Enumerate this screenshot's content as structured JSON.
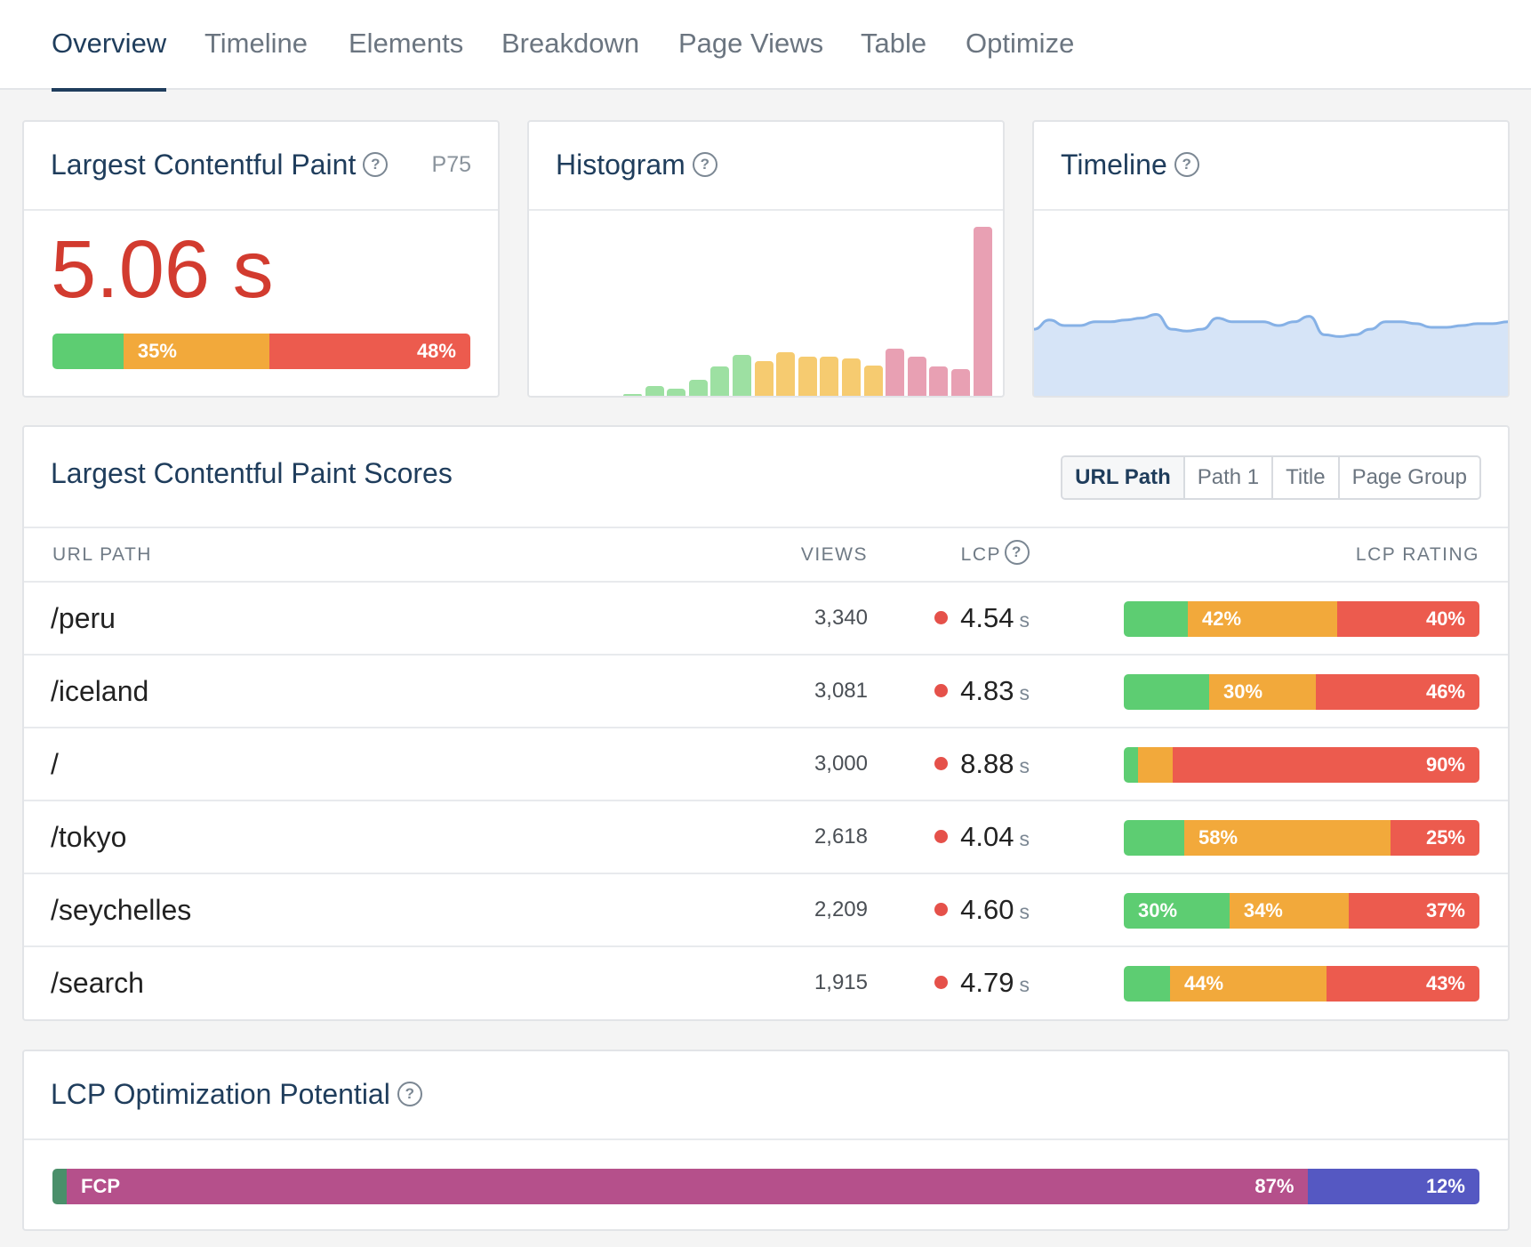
{
  "tabs": [
    {
      "label": "Overview",
      "active": true
    },
    {
      "label": "Timeline",
      "active": false
    },
    {
      "label": "Elements",
      "active": false
    },
    {
      "label": "Breakdown",
      "active": false
    },
    {
      "label": "Page Views",
      "active": false
    },
    {
      "label": "Table",
      "active": false
    },
    {
      "label": "Optimize",
      "active": false
    }
  ],
  "lcp_card": {
    "title": "Largest Contentful Paint",
    "help": "?",
    "percentile": "P75",
    "value": "5.06 s",
    "rating": {
      "good": 17,
      "ni": 35,
      "poor": 48,
      "ni_label": "35%",
      "poor_label": "48%"
    }
  },
  "histogram_card": {
    "title": "Histogram",
    "help": "?",
    "bars": [
      {
        "value": 2,
        "rating": "good"
      },
      {
        "value": 9,
        "rating": "good"
      },
      {
        "value": 7,
        "rating": "good"
      },
      {
        "value": 15,
        "rating": "good"
      },
      {
        "value": 28,
        "rating": "good"
      },
      {
        "value": 39,
        "rating": "good"
      },
      {
        "value": 33,
        "rating": "ni"
      },
      {
        "value": 41,
        "rating": "ni"
      },
      {
        "value": 37,
        "rating": "ni"
      },
      {
        "value": 37,
        "rating": "ni"
      },
      {
        "value": 35,
        "rating": "ni"
      },
      {
        "value": 29,
        "rating": "ni"
      },
      {
        "value": 45,
        "rating": "poor"
      },
      {
        "value": 37,
        "rating": "poor"
      },
      {
        "value": 28,
        "rating": "poor"
      },
      {
        "value": 25,
        "rating": "poor"
      },
      {
        "value": 160,
        "rating": "poor"
      }
    ]
  },
  "timeline_card": {
    "title": "Timeline",
    "help": "?",
    "series": [
      0.36,
      0.41,
      0.38,
      0.38,
      0.4,
      0.4,
      0.41,
      0.42,
      0.44,
      0.36,
      0.35,
      0.36,
      0.42,
      0.4,
      0.4,
      0.4,
      0.38,
      0.4,
      0.43,
      0.33,
      0.32,
      0.33,
      0.36,
      0.4,
      0.4,
      0.39,
      0.37,
      0.37,
      0.38,
      0.39,
      0.39,
      0.4
    ]
  },
  "scores_card": {
    "title": "Largest Contentful Paint Scores",
    "filters": [
      "URL Path",
      "Path 1",
      "Title",
      "Page Group"
    ],
    "columns": {
      "path": "URL PATH",
      "views": "VIEWS",
      "lcp": "LCP",
      "rating": "LCP RATING"
    },
    "rows": [
      {
        "path": "/peru",
        "views": "3,340",
        "lcp": "4.54",
        "unit": "s",
        "good": 18,
        "ni": 42,
        "poor": 40,
        "good_label": "",
        "ni_label": "42%",
        "poor_label": "40%"
      },
      {
        "path": "/iceland",
        "views": "3,081",
        "lcp": "4.83",
        "unit": "s",
        "good": 24,
        "ni": 30,
        "poor": 46,
        "good_label": "",
        "ni_label": "30%",
        "poor_label": "46%"
      },
      {
        "path": "/",
        "views": "3,000",
        "lcp": "8.88",
        "unit": "s",
        "good": 0,
        "ni": 10,
        "poor": 90,
        "good_label": "",
        "ni_label": "",
        "poor_label": "90%"
      },
      {
        "path": "/tokyo",
        "views": "2,618",
        "lcp": "4.04",
        "unit": "s",
        "good": 17,
        "ni": 58,
        "poor": 25,
        "good_label": "",
        "ni_label": "58%",
        "poor_label": "25%"
      },
      {
        "path": "/seychelles",
        "views": "2,209",
        "lcp": "4.60",
        "unit": "s",
        "good": 30,
        "ni": 34,
        "poor": 37,
        "good_label": "30%",
        "ni_label": "34%",
        "poor_label": "37%"
      },
      {
        "path": "/search",
        "views": "1,915",
        "lcp": "4.79",
        "unit": "s",
        "good": 13,
        "ni": 44,
        "poor": 43,
        "good_label": "",
        "ni_label": "44%",
        "poor_label": "43%"
      }
    ]
  },
  "optimization_card": {
    "title": "LCP Optimization Potential",
    "help": "?",
    "segments": [
      {
        "name": "",
        "value": 1,
        "color": "#4a8f6a"
      },
      {
        "name": "FCP",
        "value": 87,
        "label": "87%",
        "color": "#b5508b"
      },
      {
        "name": "",
        "value": 12,
        "label": "12%",
        "color": "#5558c2"
      }
    ]
  },
  "colors": {
    "good": "#5dcd72",
    "ni": "#f2a93b",
    "poor": "#ec5b4e",
    "hist_good": "#9de0a2",
    "hist_ni": "#f6cb70",
    "hist_poor": "#e8a0b3",
    "timeline_line": "#86b1e6",
    "timeline_fill": "#d6e4f7",
    "title": "#1f3d5c"
  }
}
